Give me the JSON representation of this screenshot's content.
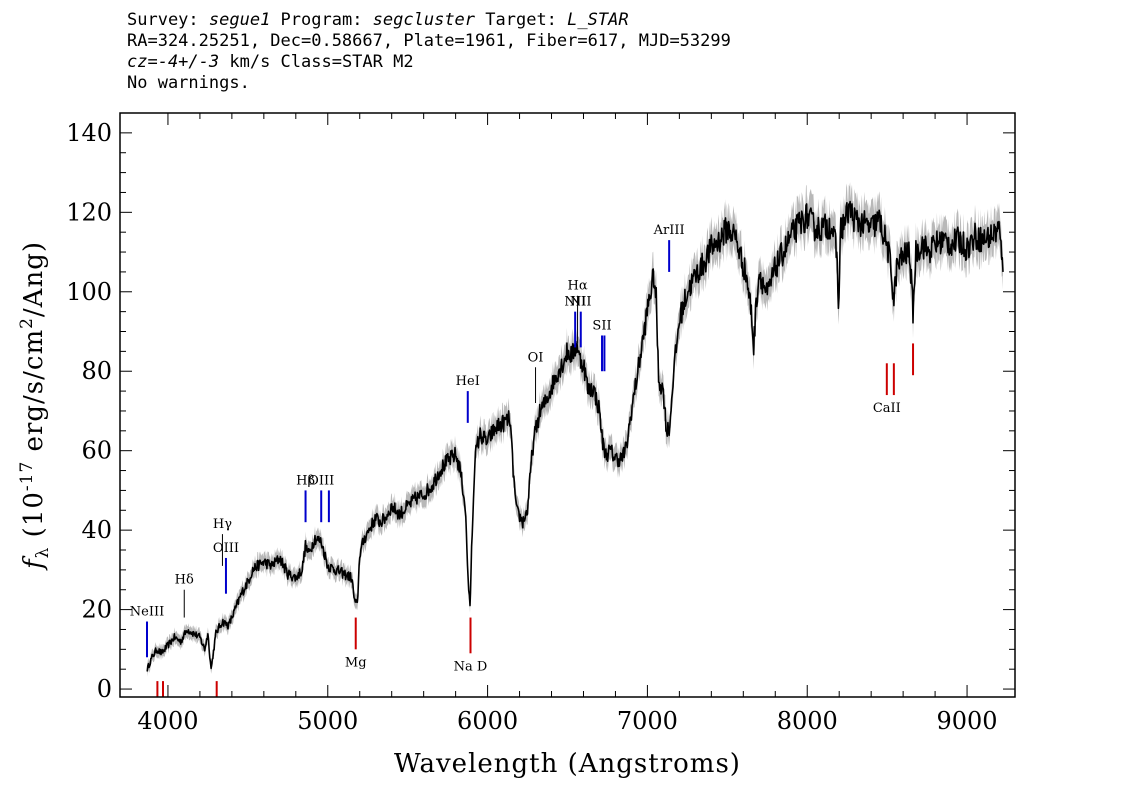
{
  "header": {
    "line1": {
      "survey_label": "Survey: ",
      "survey": "segue1",
      "program_label": " Program: ",
      "program": "segcluster",
      "target_label": " Target: ",
      "target": "L_STAR"
    },
    "line2": "RA=324.25251, Dec=0.58667, Plate=1961, Fiber=617, MJD=53299",
    "line3": {
      "cz": "cz=-4+/-3",
      "rest": " km/s Class=STAR M2"
    },
    "line4": "No warnings."
  },
  "chart_data": {
    "type": "line",
    "title": "",
    "xlabel": "Wavelength (Angstroms)",
    "ylabel": "f_λ (10^-17 erg/s/cm^2/Ang)",
    "xlim": [
      3700,
      9300
    ],
    "ylim": [
      -2,
      145
    ],
    "x_ticks": [
      4000,
      5000,
      6000,
      7000,
      8000,
      9000
    ],
    "y_ticks": [
      0,
      20,
      40,
      60,
      80,
      100,
      120,
      140
    ],
    "grid": false,
    "series": [
      {
        "color": "#000000",
        "error_band_color": "#b8b8b8",
        "x": [
          3870,
          3900,
          3930,
          3960,
          4000,
          4040,
          4080,
          4120,
          4160,
          4200,
          4230,
          4250,
          4270,
          4300,
          4340,
          4380,
          4420,
          4460,
          4500,
          4530,
          4560,
          4600,
          4650,
          4700,
          4750,
          4800,
          4840,
          4860,
          4880,
          4920,
          4960,
          5000,
          5050,
          5100,
          5150,
          5168,
          5185,
          5200,
          5230,
          5270,
          5300,
          5330,
          5360,
          5400,
          5450,
          5500,
          5550,
          5600,
          5650,
          5700,
          5740,
          5770,
          5800,
          5830,
          5860,
          5878,
          5890,
          5900,
          5920,
          5950,
          5980,
          6000,
          6020,
          6060,
          6100,
          6140,
          6160,
          6180,
          6220,
          6250,
          6280,
          6300,
          6330,
          6360,
          6400,
          6440,
          6470,
          6500,
          6530,
          6560,
          6575,
          6600,
          6630,
          6660,
          6700,
          6720,
          6740,
          6770,
          6800,
          6840,
          6870,
          6900,
          6940,
          6980,
          7010,
          7040,
          7055,
          7070,
          7100,
          7120,
          7140,
          7160,
          7200,
          7250,
          7300,
          7350,
          7400,
          7450,
          7500,
          7550,
          7590,
          7620,
          7650,
          7665,
          7680,
          7700,
          7750,
          7800,
          7850,
          7900,
          7950,
          8000,
          8050,
          8100,
          8150,
          8185,
          8195,
          8210,
          8240,
          8260,
          8300,
          8350,
          8400,
          8450,
          8498,
          8520,
          8542,
          8560,
          8600,
          8640,
          8662,
          8680,
          8720,
          8760,
          8800,
          8850,
          8900,
          8950,
          9000,
          9050,
          9100,
          9150,
          9200,
          9225
        ],
        "y": [
          5,
          8,
          10,
          9,
          11,
          13,
          12,
          15,
          14,
          13,
          10,
          14,
          5,
          14,
          17,
          16,
          20,
          24,
          27,
          30,
          31,
          32,
          31,
          33,
          29,
          28,
          30,
          36,
          34,
          38,
          37,
          31,
          30,
          29,
          28,
          22,
          21,
          34,
          38,
          41,
          43,
          42,
          43,
          46,
          44,
          46,
          48,
          49,
          51,
          55,
          57,
          58,
          59,
          55,
          46,
          28,
          20,
          35,
          58,
          64,
          63,
          62,
          64,
          66,
          67,
          68,
          55,
          45,
          42,
          45,
          60,
          65,
          70,
          72,
          76,
          80,
          82,
          85,
          84,
          87,
          83,
          82,
          75,
          76,
          70,
          62,
          59,
          60,
          58,
          58,
          61,
          70,
          80,
          90,
          98,
          104,
          98,
          78,
          75,
          65,
          66,
          78,
          93,
          100,
          104,
          107,
          111,
          113,
          116,
          114,
          108,
          104,
          95,
          86,
          97,
          105,
          99,
          106,
          110,
          114,
          117,
          119,
          116,
          116,
          117,
          110,
          96,
          116,
          118,
          121,
          118,
          117,
          116,
          118,
          112,
          107,
          98,
          106,
          109,
          110,
          95,
          110,
          112,
          110,
          112,
          113,
          112,
          113,
          111,
          114,
          113,
          114,
          116,
          105
        ]
      }
    ],
    "line_markers": [
      {
        "label": "NeIII",
        "wavelength": 3869,
        "color": "#0000cc",
        "y1": 8,
        "y2": 17
      },
      {
        "label": "Hδ",
        "wavelength": 4102,
        "color": "#000000",
        "y1": 18,
        "y2": 25
      },
      {
        "label": "Hγ",
        "wavelength": 4341,
        "color": "#000000",
        "y1": 31,
        "y2": 39
      },
      {
        "label": "OIII",
        "wavelength": 4363,
        "color": "#0000cc",
        "y1": 24,
        "y2": 33
      },
      {
        "label": "Hβ",
        "wavelength": 4861,
        "color": "#0000cc",
        "y1": 42,
        "y2": 50
      },
      {
        "label": "OIII",
        "wavelength": 4959,
        "color": "#0000cc",
        "y1": 42,
        "y2": 50
      },
      {
        "label": "",
        "wavelength": 5007,
        "color": "#0000cc",
        "y1": 42,
        "y2": 50
      },
      {
        "label": "HeI",
        "wavelength": 5876,
        "color": "#0000cc",
        "y1": 67,
        "y2": 75
      },
      {
        "label": "OI",
        "wavelength": 6300,
        "color": "#000000",
        "y1": 72,
        "y2": 81
      },
      {
        "label": "NII",
        "wavelength": 6548,
        "color": "#0000cc",
        "y1": 86,
        "y2": 95
      },
      {
        "label": "Hα",
        "wavelength": 6563,
        "color": "#000000",
        "y1": 87,
        "y2": 99
      },
      {
        "label": "NII",
        "wavelength": 6583,
        "color": "#0000cc",
        "y1": 86,
        "y2": 95
      },
      {
        "label": "SII",
        "wavelength": 6716,
        "color": "#0000cc",
        "y1": 80,
        "y2": 89
      },
      {
        "label": "",
        "wavelength": 6731,
        "color": "#0000cc",
        "y1": 80,
        "y2": 89
      },
      {
        "label": "ArIII",
        "wavelength": 7136,
        "color": "#0000cc",
        "y1": 105,
        "y2": 113
      },
      {
        "label": "",
        "wavelength": 3934,
        "color": "#cc0000",
        "y1": -2,
        "y2": 2
      },
      {
        "label": "",
        "wavelength": 3969,
        "color": "#cc0000",
        "y1": -2,
        "y2": 2
      },
      {
        "label": "",
        "wavelength": 4305,
        "color": "#cc0000",
        "y1": -2,
        "y2": 2
      },
      {
        "label": "Mg",
        "wavelength": 5175,
        "color": "#cc0000",
        "y1": 10,
        "y2": 18
      },
      {
        "label": "Na D",
        "wavelength": 5893,
        "color": "#cc0000",
        "y1": 9,
        "y2": 18
      },
      {
        "label": "CaII",
        "wavelength": 8498,
        "color": "#cc0000",
        "y1": 74,
        "y2": 82
      },
      {
        "label": "",
        "wavelength": 8542,
        "color": "#cc0000",
        "y1": 74,
        "y2": 82
      },
      {
        "label": "",
        "wavelength": 8662,
        "color": "#cc0000",
        "y1": 79,
        "y2": 87
      }
    ]
  }
}
